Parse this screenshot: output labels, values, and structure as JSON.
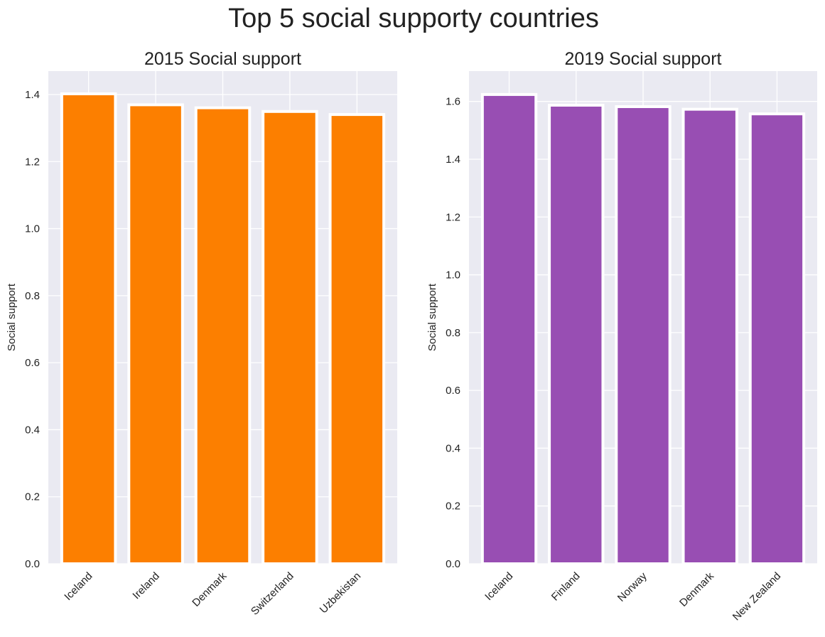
{
  "suptitle": "Top 5 social supporty countries",
  "colors": {
    "background": "#eaeaf2",
    "grid": "#ffffff",
    "bar_edge": "#ffffff",
    "text": "#222222"
  },
  "chart_data": [
    {
      "type": "bar",
      "title": "2015 Social support",
      "xlabel": "",
      "ylabel": "Social support",
      "categories": [
        "Iceland",
        "Ireland",
        "Denmark",
        "Switzerland",
        "Uzbekistan"
      ],
      "values": [
        1.40223,
        1.36948,
        1.36058,
        1.34951,
        1.34043
      ],
      "ylim": [
        0,
        1.47
      ],
      "yticks": [
        0.0,
        0.2,
        0.4,
        0.6,
        0.8,
        1.0,
        1.2,
        1.4
      ],
      "color": "#fc7f00",
      "grid": true
    },
    {
      "type": "bar",
      "title": "2019 Social support",
      "xlabel": "",
      "ylabel": "Social support",
      "categories": [
        "Iceland",
        "Finland",
        "Norway",
        "Denmark",
        "New Zealand"
      ],
      "values": [
        1.624,
        1.587,
        1.582,
        1.573,
        1.557
      ],
      "ylim": [
        0,
        1.705
      ],
      "yticks": [
        0.0,
        0.2,
        0.4,
        0.6,
        0.8,
        1.0,
        1.2,
        1.4,
        1.6
      ],
      "color": "#984eb3",
      "grid": true
    }
  ]
}
